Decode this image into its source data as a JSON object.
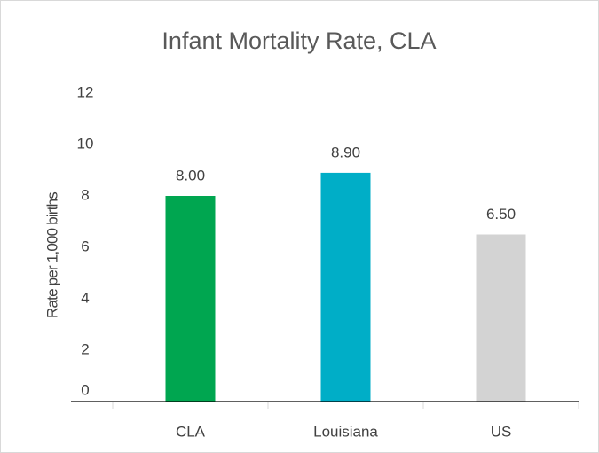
{
  "chart_data": {
    "type": "bar",
    "title": "Infant Mortality Rate, CLA",
    "y_label": "Rate per 1,000 births",
    "categories": [
      "CLA",
      "Louisiana",
      "US"
    ],
    "values": [
      8.0,
      8.9,
      6.5
    ],
    "value_labels": [
      "8.00",
      "8.90",
      "6.50"
    ],
    "colors": [
      "#00a650",
      "#00aec7",
      "#d3d3d3"
    ],
    "ylim": [
      0,
      12
    ],
    "yticks": [
      0,
      2,
      4,
      6,
      8,
      10,
      12
    ],
    "grid": false
  }
}
